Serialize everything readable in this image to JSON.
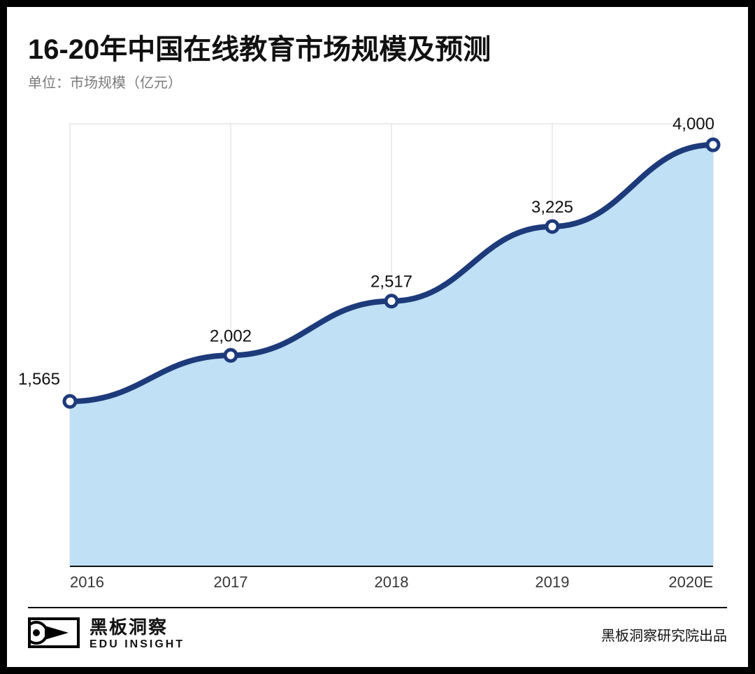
{
  "title": "16-20年中国在线教育市场规模及预测",
  "subtitle": "单位：市场规模（亿元）",
  "chart": {
    "type": "area",
    "categories": [
      "2016",
      "2017",
      "2018",
      "2019",
      "2020E"
    ],
    "values": [
      1565,
      2002,
      2517,
      3225,
      4000
    ],
    "labels": [
      "1,565",
      "2,002",
      "2,517",
      "3,225",
      "4,000"
    ],
    "ylim": [
      0,
      4200
    ],
    "line_color": "#1d3a7a",
    "line_width": 8,
    "area_color": "#bfe0f5",
    "area_opacity": 1.0,
    "marker_fill": "#ffffff",
    "marker_stroke": "#1d3a7a",
    "marker_stroke_width": 5,
    "marker_radius": 8,
    "grid_color": "#d9d9d9",
    "grid_width": 1,
    "background_color": "#ffffff",
    "axis_color": "#111111",
    "axis_width": 2,
    "data_label_color": "#111111",
    "data_label_fontsize": 24,
    "tick_label_color": "#373737",
    "tick_label_fontsize": 22,
    "title_fontsize": 40,
    "subtitle_fontsize": 20,
    "subtitle_color": "#7a7a7a"
  },
  "brand": {
    "cn": "黑板洞察",
    "en": "EDU INSIGHT"
  },
  "credit": "黑板洞察研究院出品"
}
